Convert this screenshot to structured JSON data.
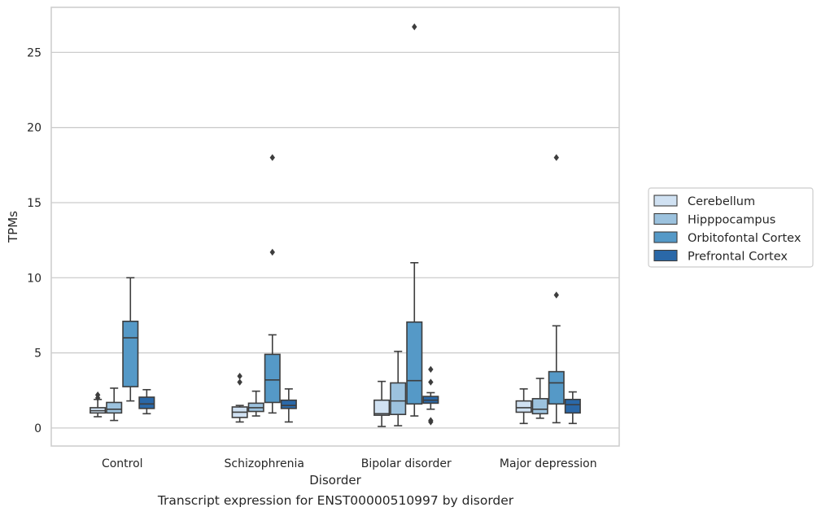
{
  "chart_data": {
    "type": "boxplot",
    "title": "",
    "caption": "Transcript expression for ENST00000510997 by disorder",
    "xlabel": "Disorder",
    "ylabel": "TPMs",
    "ylim": [
      -1.2,
      28
    ],
    "yticks": [
      0,
      5,
      10,
      15,
      20,
      25
    ],
    "grid": "horizontal",
    "legend_position": "right",
    "categories": [
      "Control",
      "Schizophrenia",
      "Bipolar disorder",
      "Major depression"
    ],
    "series": [
      {
        "name": "Cerebellum",
        "color": "#d0e1f2",
        "boxes": [
          {
            "whislo": 0.75,
            "q1": 1.0,
            "med": 1.15,
            "q3": 1.35,
            "whishi": 1.9,
            "fliers": [
              2.0,
              2.2
            ]
          },
          {
            "whislo": 0.4,
            "q1": 0.7,
            "med": 1.05,
            "q3": 1.4,
            "whishi": 1.5,
            "fliers": [
              3.05,
              3.45
            ]
          },
          {
            "whislo": 0.1,
            "q1": 0.85,
            "med": 0.95,
            "q3": 1.85,
            "whishi": 3.1,
            "fliers": []
          },
          {
            "whislo": 0.3,
            "q1": 1.05,
            "med": 1.35,
            "q3": 1.8,
            "whishi": 2.6,
            "fliers": []
          }
        ]
      },
      {
        "name": "Hipppocampus",
        "color": "#9cc2de",
        "boxes": [
          {
            "whislo": 0.5,
            "q1": 1.0,
            "med": 1.25,
            "q3": 1.7,
            "whishi": 2.65,
            "fliers": []
          },
          {
            "whislo": 0.8,
            "q1": 1.1,
            "med": 1.35,
            "q3": 1.65,
            "whishi": 2.45,
            "fliers": []
          },
          {
            "whislo": 0.15,
            "q1": 0.9,
            "med": 1.8,
            "q3": 3.0,
            "whishi": 5.1,
            "fliers": []
          },
          {
            "whislo": 0.65,
            "q1": 0.95,
            "med": 1.25,
            "q3": 1.95,
            "whishi": 3.3,
            "fliers": []
          }
        ]
      },
      {
        "name": "Orbitofontal Cortex",
        "color": "#5599c7",
        "boxes": [
          {
            "whislo": 1.8,
            "q1": 2.75,
            "med": 6.0,
            "q3": 7.1,
            "whishi": 10.0,
            "fliers": []
          },
          {
            "whislo": 1.0,
            "q1": 1.7,
            "med": 3.2,
            "q3": 4.9,
            "whishi": 6.2,
            "fliers": [
              11.7,
              18.0
            ]
          },
          {
            "whislo": 0.8,
            "q1": 1.6,
            "med": 3.15,
            "q3": 7.05,
            "whishi": 11.0,
            "fliers": [
              26.7
            ]
          },
          {
            "whislo": 0.35,
            "q1": 1.6,
            "med": 3.0,
            "q3": 3.75,
            "whishi": 6.8,
            "fliers": [
              8.85,
              18.0
            ]
          }
        ]
      },
      {
        "name": "Prefrontal Cortex",
        "color": "#2a68a8",
        "boxes": [
          {
            "whislo": 0.95,
            "q1": 1.3,
            "med": 1.6,
            "q3": 2.05,
            "whishi": 2.55,
            "fliers": []
          },
          {
            "whislo": 0.4,
            "q1": 1.3,
            "med": 1.5,
            "q3": 1.85,
            "whishi": 2.6,
            "fliers": []
          },
          {
            "whislo": 1.25,
            "q1": 1.65,
            "med": 1.85,
            "q3": 2.1,
            "whishi": 2.35,
            "fliers": [
              0.4,
              0.5,
              3.05,
              3.9
            ]
          },
          {
            "whislo": 0.3,
            "q1": 1.0,
            "med": 1.55,
            "q3": 1.9,
            "whishi": 2.4,
            "fliers": []
          }
        ]
      }
    ]
  }
}
